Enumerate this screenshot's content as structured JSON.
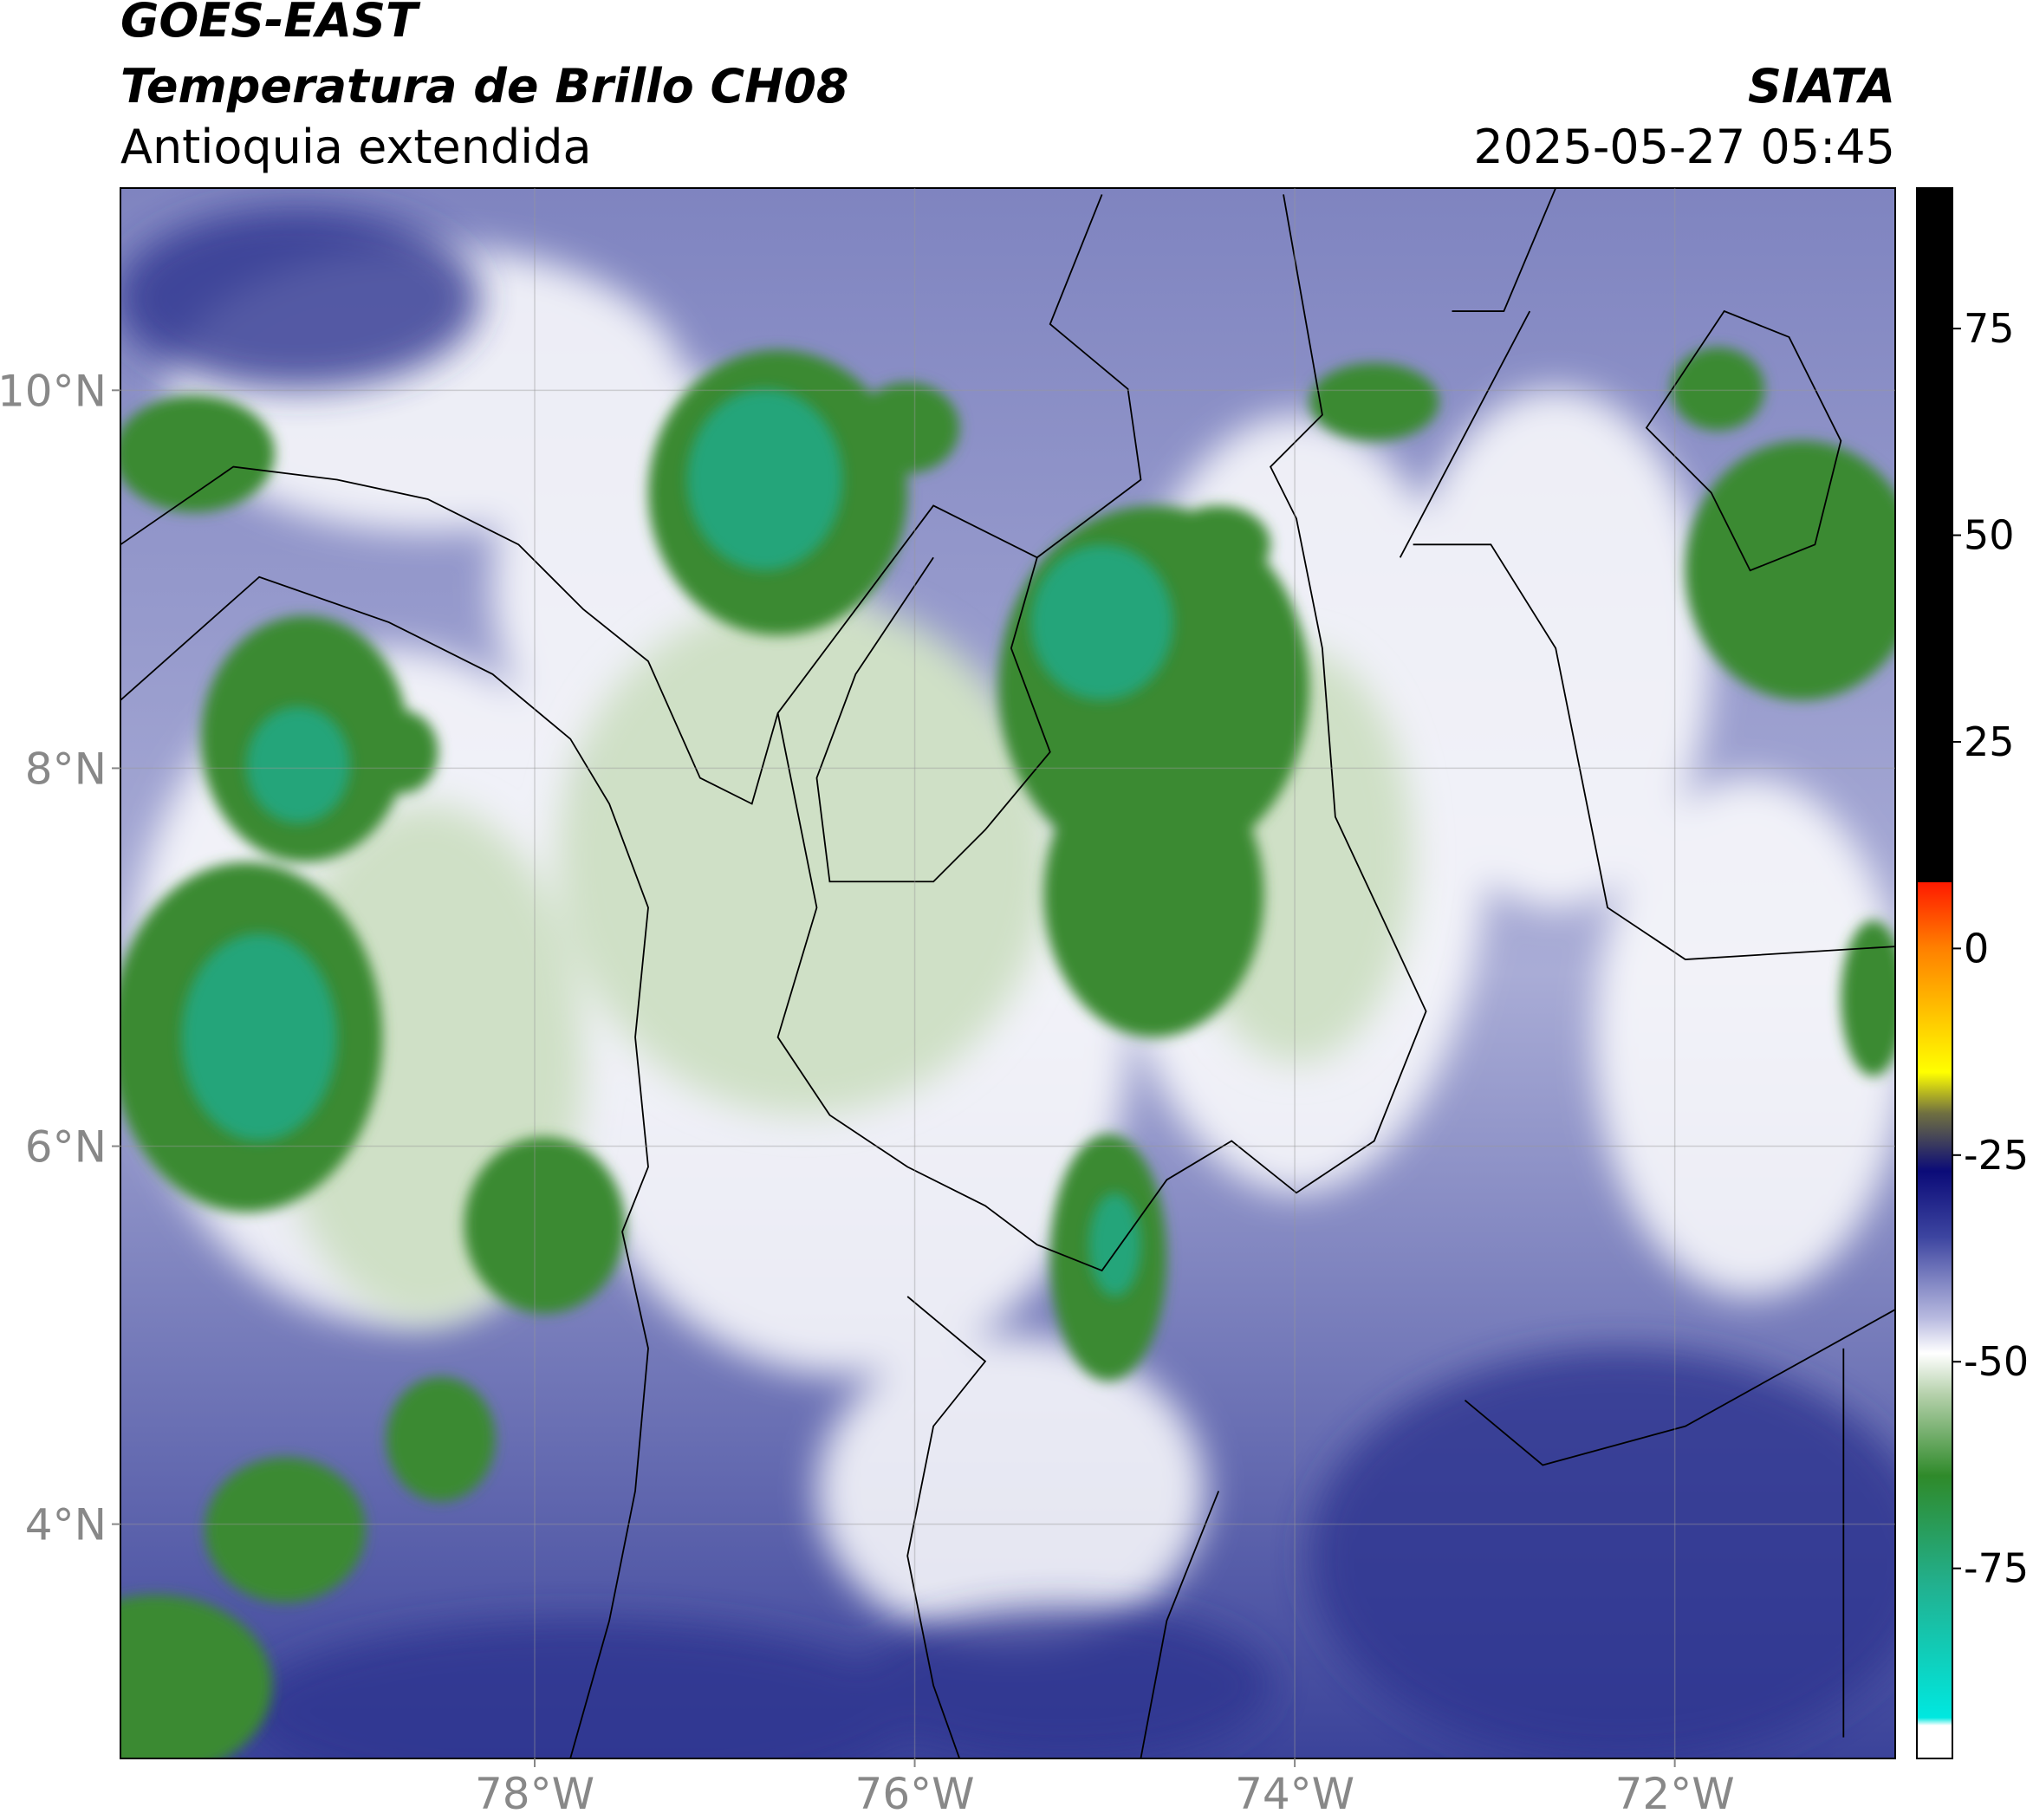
{
  "header": {
    "title": "GOES-EAST",
    "subtitle": "Temperatura de Brillo CH08",
    "region": "Antioquia extendida",
    "source": "SIATA",
    "datetime": "2025-05-27 05:45"
  },
  "map": {
    "xlim": [
      -80.18,
      -70.84
    ],
    "ylim": [
      2.76,
      11.07
    ],
    "xticks": [
      {
        "value": -78,
        "label": "78°W"
      },
      {
        "value": -76,
        "label": "76°W"
      },
      {
        "value": -74,
        "label": "74°W"
      },
      {
        "value": -72,
        "label": "72°W"
      }
    ],
    "yticks": [
      {
        "value": 4,
        "label": "4°N"
      },
      {
        "value": 6,
        "label": "6°N"
      },
      {
        "value": 8,
        "label": "8°N"
      },
      {
        "value": 10,
        "label": "10°N"
      }
    ],
    "grid": true
  },
  "colorbar": {
    "lim": [
      -98,
      92
    ],
    "ticks": [
      -75,
      -50,
      -25,
      0,
      25,
      50,
      75
    ]
  }
}
